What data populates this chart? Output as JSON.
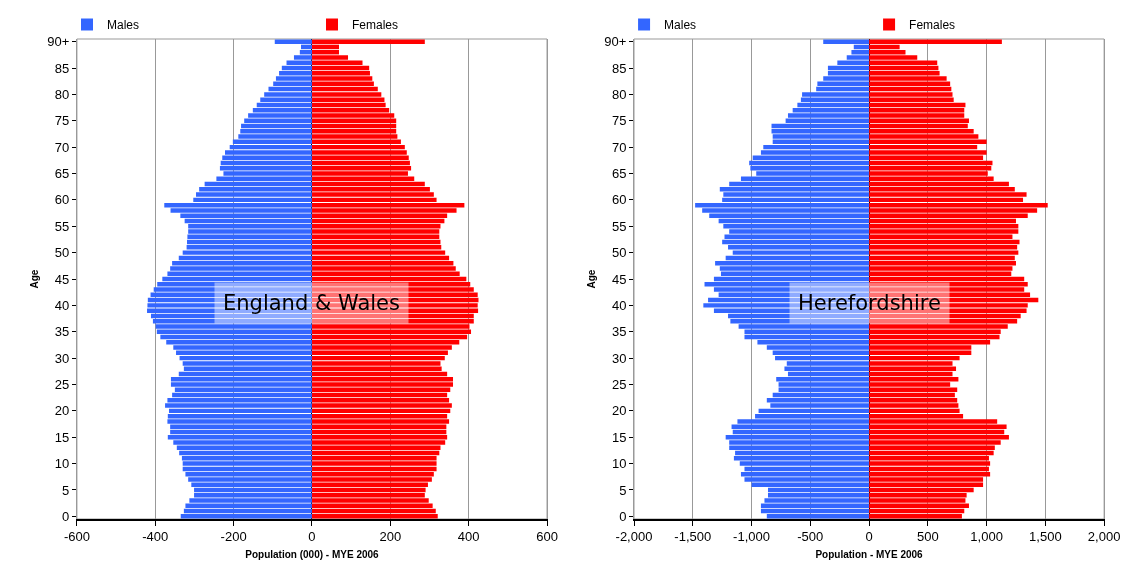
{
  "chart_data": [
    {
      "type": "bar",
      "orientation": "horizontal",
      "stacked": true,
      "xlabel": "Population (000) - MYE 2006",
      "ylabel": "Age",
      "annotations": [
        "England & Wales"
      ],
      "grid": "x",
      "legend": "top",
      "xlim": [
        -600,
        600
      ],
      "xticks": [
        -600,
        -400,
        -200,
        0,
        200,
        400,
        600
      ],
      "categories": [
        "90+",
        null,
        null,
        null,
        null,
        "85",
        null,
        null,
        null,
        null,
        "80",
        null,
        null,
        null,
        null,
        "75",
        null,
        null,
        null,
        null,
        "70",
        null,
        null,
        null,
        null,
        "65",
        null,
        null,
        null,
        null,
        "60",
        null,
        null,
        null,
        null,
        "55",
        null,
        null,
        null,
        null,
        "50",
        null,
        null,
        null,
        null,
        "45",
        null,
        null,
        null,
        null,
        "40",
        null,
        null,
        null,
        null,
        "35",
        null,
        null,
        null,
        null,
        "30",
        null,
        null,
        null,
        null,
        "25",
        null,
        null,
        null,
        null,
        "20",
        null,
        null,
        null,
        null,
        "15",
        null,
        null,
        null,
        null,
        "10",
        null,
        null,
        null,
        null,
        "5",
        null,
        null,
        null,
        null,
        "0"
      ],
      "series": [
        {
          "name": "Males",
          "color": "#3366ff",
          "values": [
            -95,
            -28,
            -31,
            -46,
            -65,
            -77,
            -84,
            -92,
            -99,
            -111,
            -122,
            -132,
            -141,
            -151,
            -163,
            -173,
            -181,
            -183,
            -188,
            -202,
            -210,
            -222,
            -229,
            -233,
            -235,
            -226,
            -244,
            -274,
            -288,
            -296,
            -303,
            -377,
            -361,
            -336,
            -325,
            -316,
            -316,
            -318,
            -319,
            -320,
            -330,
            -340,
            -357,
            -362,
            -369,
            -382,
            -395,
            -404,
            -412,
            -419,
            -420,
            -421,
            -411,
            -406,
            -399,
            -396,
            -387,
            -372,
            -354,
            -347,
            -338,
            -330,
            -327,
            -340,
            -360,
            -360,
            -350,
            -357,
            -369,
            -375,
            -365,
            -368,
            -369,
            -362,
            -362,
            -368,
            -354,
            -345,
            -339,
            -332,
            -330,
            -330,
            -323,
            -316,
            -308,
            -301,
            -301,
            -313,
            -323,
            -327,
            -335
          ]
        },
        {
          "name": "Females",
          "color": "#ff0000",
          "values": [
            288,
            69,
            69,
            92,
            129,
            146,
            148,
            154,
            158,
            168,
            177,
            185,
            188,
            197,
            210,
            215,
            215,
            215,
            218,
            227,
            237,
            242,
            247,
            250,
            253,
            245,
            261,
            288,
            301,
            311,
            318,
            389,
            369,
            345,
            338,
            328,
            325,
            325,
            328,
            330,
            340,
            350,
            361,
            367,
            377,
            394,
            404,
            413,
            423,
            425,
            423,
            424,
            413,
            413,
            402,
            406,
            396,
            376,
            357,
            347,
            339,
            328,
            331,
            345,
            360,
            360,
            353,
            345,
            350,
            357,
            353,
            345,
            350,
            343,
            343,
            345,
            340,
            328,
            325,
            318,
            318,
            318,
            311,
            306,
            296,
            290,
            288,
            298,
            308,
            316,
            321
          ]
        }
      ]
    },
    {
      "type": "bar",
      "orientation": "horizontal",
      "stacked": true,
      "xlabel": "Population - MYE 2006",
      "ylabel": "Age",
      "annotations": [
        "Herefordshire"
      ],
      "grid": "x",
      "legend": "top",
      "xlim": [
        -2000,
        2000
      ],
      "xticks": [
        {
          "value": -2000,
          "label": "-2,000"
        },
        {
          "value": -1500,
          "label": "-1,500"
        },
        {
          "value": -1000,
          "label": "-1,000"
        },
        -500,
        0,
        500,
        {
          "value": 1000,
          "label": "1,000"
        },
        {
          "value": 1500,
          "label": "1,500"
        },
        {
          "value": 2000,
          "label": "2,000"
        }
      ],
      "categories": [
        "90+",
        null,
        null,
        null,
        null,
        "85",
        null,
        null,
        null,
        null,
        "80",
        null,
        null,
        null,
        null,
        "75",
        null,
        null,
        null,
        null,
        "70",
        null,
        null,
        null,
        null,
        "65",
        null,
        null,
        null,
        null,
        "60",
        null,
        null,
        null,
        null,
        "55",
        null,
        null,
        null,
        null,
        "50",
        null,
        null,
        null,
        null,
        "45",
        null,
        null,
        null,
        null,
        "40",
        null,
        null,
        null,
        null,
        "35",
        null,
        null,
        null,
        null,
        "30",
        null,
        null,
        null,
        null,
        "25",
        null,
        null,
        null,
        null,
        "20",
        null,
        null,
        null,
        null,
        "15",
        null,
        null,
        null,
        null,
        "10",
        null,
        null,
        null,
        null,
        "5",
        null,
        null,
        null,
        null,
        "0"
      ],
      "series": [
        {
          "name": "Males",
          "color": "#3366ff",
          "values": [
            -390,
            -130,
            -150,
            -190,
            -270,
            -350,
            -350,
            -390,
            -440,
            -450,
            -570,
            -580,
            -610,
            -650,
            -690,
            -710,
            -830,
            -830,
            -820,
            -820,
            -900,
            -920,
            -990,
            -1020,
            -1010,
            -960,
            -1090,
            -1190,
            -1270,
            -1240,
            -1250,
            -1480,
            -1420,
            -1360,
            -1280,
            -1240,
            -1190,
            -1230,
            -1250,
            -1200,
            -1160,
            -1220,
            -1310,
            -1270,
            -1260,
            -1320,
            -1400,
            -1320,
            -1280,
            -1370,
            -1410,
            -1320,
            -1200,
            -1180,
            -1110,
            -1060,
            -1060,
            -950,
            -870,
            -820,
            -800,
            -700,
            -720,
            -690,
            -790,
            -770,
            -770,
            -820,
            -870,
            -840,
            -940,
            -970,
            -1120,
            -1170,
            -1160,
            -1220,
            -1190,
            -1190,
            -1140,
            -1150,
            -1100,
            -1060,
            -1090,
            -1060,
            -1000,
            -860,
            -860,
            -890,
            -920,
            -920,
            -870
          ]
        },
        {
          "name": "Females",
          "color": "#ff0000",
          "values": [
            1130,
            260,
            310,
            410,
            580,
            590,
            600,
            660,
            690,
            700,
            710,
            720,
            820,
            810,
            810,
            850,
            840,
            890,
            930,
            1000,
            920,
            1000,
            970,
            1050,
            1040,
            1010,
            1060,
            1190,
            1240,
            1340,
            1310,
            1520,
            1430,
            1350,
            1250,
            1270,
            1270,
            1220,
            1280,
            1260,
            1270,
            1240,
            1250,
            1220,
            1210,
            1320,
            1350,
            1320,
            1370,
            1440,
            1350,
            1340,
            1290,
            1260,
            1180,
            1120,
            1110,
            1030,
            870,
            870,
            770,
            710,
            740,
            710,
            760,
            690,
            750,
            730,
            750,
            760,
            770,
            800,
            1090,
            1170,
            1150,
            1190,
            1120,
            1070,
            1060,
            1020,
            1030,
            1020,
            1030,
            970,
            970,
            890,
            830,
            820,
            850,
            810,
            790
          ]
        }
      ]
    }
  ]
}
